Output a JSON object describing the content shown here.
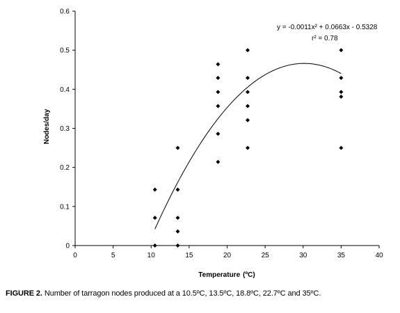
{
  "chart_data": {
    "type": "scatter",
    "xlabel": "Temperature",
    "xlabel_unit": "(ºC)",
    "ylabel": "Nodes/day",
    "xlim": [
      0,
      40
    ],
    "ylim": [
      0,
      0.6
    ],
    "x_ticks": [
      "0",
      "5",
      "10",
      "15",
      "20",
      "25",
      "30",
      "35",
      "40"
    ],
    "y_ticks": [
      "0",
      "0.1",
      "0.2",
      "0.3",
      "0.4",
      "0.5",
      "0.6"
    ],
    "grid": false,
    "points": [
      {
        "x": 10.5,
        "y": 0.143
      },
      {
        "x": 10.5,
        "y": 0.071
      },
      {
        "x": 10.5,
        "y": 0.0
      },
      {
        "x": 13.5,
        "y": 0.25
      },
      {
        "x": 13.5,
        "y": 0.143
      },
      {
        "x": 13.5,
        "y": 0.071
      },
      {
        "x": 13.5,
        "y": 0.036
      },
      {
        "x": 13.5,
        "y": 0.0
      },
      {
        "x": 18.8,
        "y": 0.464
      },
      {
        "x": 18.8,
        "y": 0.429
      },
      {
        "x": 18.8,
        "y": 0.393
      },
      {
        "x": 18.8,
        "y": 0.357
      },
      {
        "x": 18.8,
        "y": 0.286
      },
      {
        "x": 18.8,
        "y": 0.214
      },
      {
        "x": 22.7,
        "y": 0.5
      },
      {
        "x": 22.7,
        "y": 0.429
      },
      {
        "x": 22.7,
        "y": 0.393
      },
      {
        "x": 22.7,
        "y": 0.357
      },
      {
        "x": 22.7,
        "y": 0.321
      },
      {
        "x": 22.7,
        "y": 0.25
      },
      {
        "x": 35.0,
        "y": 0.5
      },
      {
        "x": 35.0,
        "y": 0.429
      },
      {
        "x": 35.0,
        "y": 0.393
      },
      {
        "x": 35.0,
        "y": 0.381
      },
      {
        "x": 35.0,
        "y": 0.25
      }
    ],
    "trendline": {
      "a": -0.0011,
      "b": 0.0663,
      "c": -0.5328,
      "x_range": [
        10.5,
        35.0
      ],
      "equation": "y = -0.0011x² + 0.0663x  - 0.5328",
      "r2": "r² = 0.78"
    }
  },
  "caption": {
    "label": "FIGURE 2.",
    "text": " Number of tarragon nodes produced at a 10.5ºC, 13.5ºC, 18.8ºC, 22.7ºC and 35ºC."
  }
}
